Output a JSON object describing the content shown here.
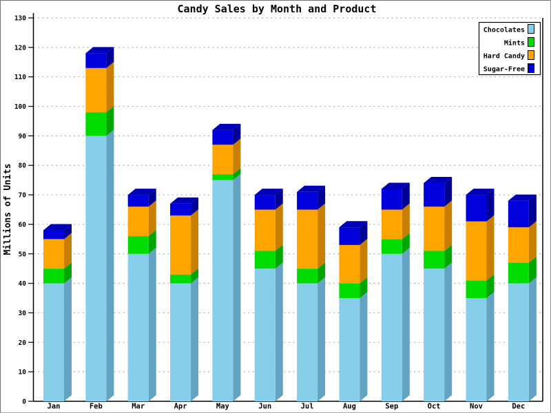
{
  "window": {
    "background": "#FFFFFF",
    "border_color": "#808080"
  },
  "chart_data": {
    "type": "bar",
    "stacked": true,
    "style_3d": true,
    "title": "Candy Sales by Month and Product",
    "ylabel": "Millions of Units",
    "xlabel": "",
    "ylim": [
      0,
      130
    ],
    "ytick_step": 10,
    "grid": "horizontal-dashed",
    "grid_color": "#B0B0B0",
    "axis_color": "#000000",
    "legend_position": "top-right",
    "categories": [
      "Jan",
      "Feb",
      "Mar",
      "Apr",
      "May",
      "Jun",
      "Jul",
      "Aug",
      "Sep",
      "Oct",
      "Nov",
      "Dec"
    ],
    "series": [
      {
        "name": "Chocolates",
        "color": "#87CEEB",
        "side_color": "#63A3C1",
        "top_color": "#74B8D6",
        "values": [
          40,
          90,
          50,
          40,
          75,
          45,
          40,
          35,
          50,
          45,
          35,
          40
        ]
      },
      {
        "name": "Mints",
        "color": "#00DC00",
        "side_color": "#00A500",
        "top_color": "#00BE00",
        "values": [
          5,
          8,
          6,
          3,
          2,
          6,
          5,
          5,
          5,
          6,
          6,
          7
        ]
      },
      {
        "name": "Hard Candy",
        "color": "#FFA500",
        "side_color": "#C87E00",
        "top_color": "#DE9000",
        "values": [
          10,
          15,
          10,
          20,
          10,
          14,
          20,
          13,
          10,
          15,
          20,
          12
        ]
      },
      {
        "name": "Sugar-Free",
        "color": "#0000DC",
        "side_color": "#000092",
        "top_color": "#0000B4",
        "values": [
          3,
          5,
          4,
          4,
          5,
          5,
          6,
          6,
          7,
          8,
          9,
          9
        ]
      }
    ]
  }
}
